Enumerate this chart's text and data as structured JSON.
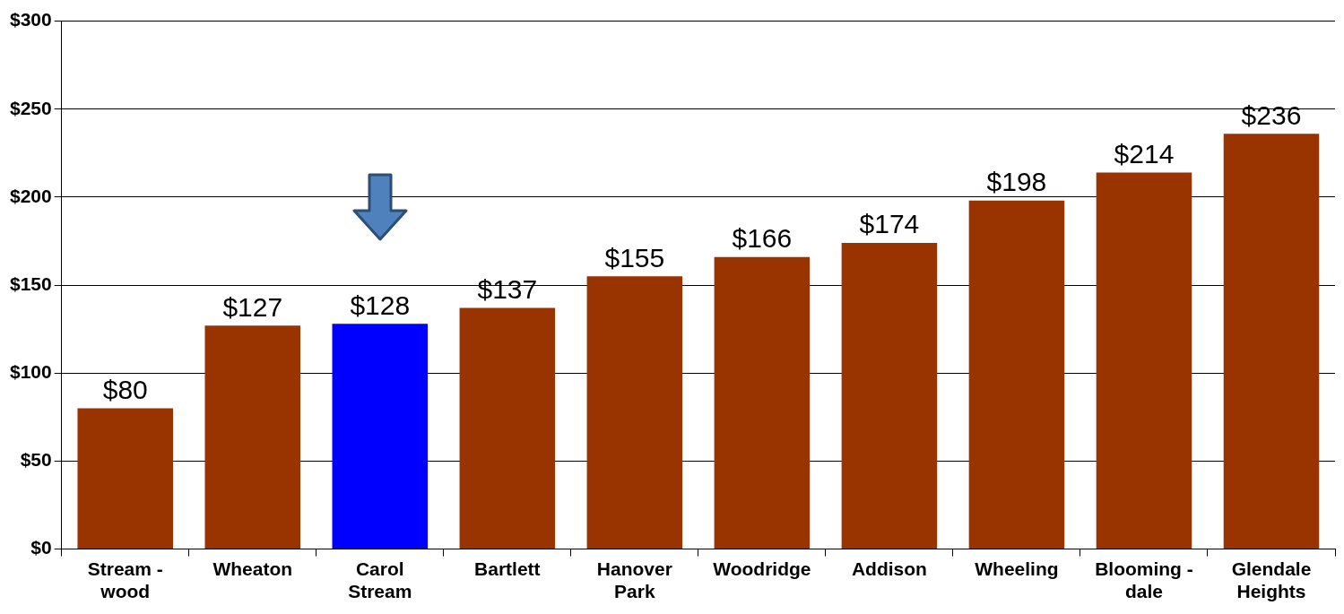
{
  "chart_data": {
    "type": "bar",
    "categories": [
      "Stream -\nwood",
      "Wheaton",
      "Carol\nStream",
      "Bartlett",
      "Hanover\nPark",
      "Woodridge",
      "Addison",
      "Wheeling",
      "Blooming -\ndale",
      "Glendale\nHeights"
    ],
    "values": [
      80,
      127,
      128,
      137,
      155,
      166,
      174,
      198,
      214,
      236
    ],
    "colors": [
      "#993300",
      "#993300",
      "#0000ff",
      "#993300",
      "#993300",
      "#993300",
      "#993300",
      "#993300",
      "#993300",
      "#993300"
    ],
    "value_labels": [
      "$80",
      "$127",
      "$128",
      "$137",
      "$155",
      "$166",
      "$174",
      "$198",
      "$214",
      "$236"
    ],
    "ylim": [
      0,
      300
    ],
    "yticks": [
      {
        "value": 0,
        "label": "$0"
      },
      {
        "value": 50,
        "label": "$50"
      },
      {
        "value": 100,
        "label": "$100"
      },
      {
        "value": 150,
        "label": "$150"
      },
      {
        "value": 200,
        "label": "$200"
      },
      {
        "value": 250,
        "label": "$250"
      },
      {
        "value": 300,
        "label": "$300"
      }
    ],
    "grid": "y",
    "legend": false
  }
}
